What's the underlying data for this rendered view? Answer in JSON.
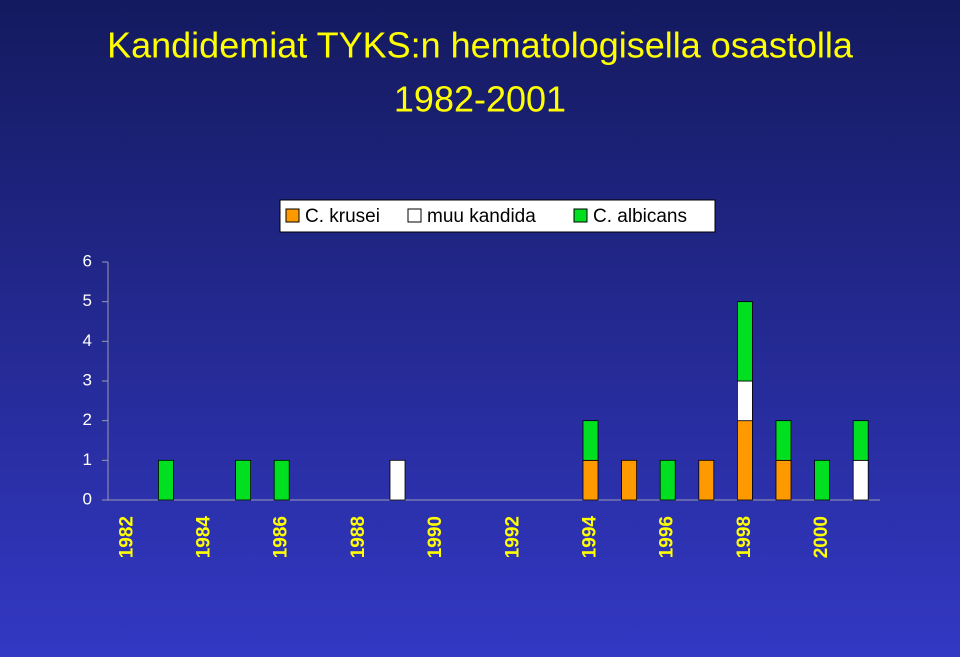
{
  "chart_data": {
    "type": "stacked_bar",
    "title": "Kandidemiat TYKS:n hematologisella osastolla",
    "subtitle": "1982-2001",
    "categories": [
      "1982",
      null,
      "1984",
      null,
      "1986",
      null,
      "1988",
      null,
      "1990",
      null,
      "1992",
      null,
      "1994",
      null,
      "1996",
      null,
      "1998",
      null,
      "2000",
      null
    ],
    "series": [
      {
        "name": "C. krusei",
        "color": "#ff9900",
        "values": [
          0,
          0,
          0,
          0,
          0,
          0,
          0,
          0,
          0,
          0,
          0,
          0,
          1,
          1,
          0,
          1,
          2,
          1,
          0,
          0
        ]
      },
      {
        "name": "muu kandida",
        "color": "#ffffff",
        "values": [
          0,
          0,
          0,
          0,
          0,
          0,
          0,
          1,
          0,
          0,
          0,
          0,
          0,
          0,
          0,
          0,
          1,
          0,
          0,
          1
        ]
      },
      {
        "name": "C. albicans",
        "color": "#00e020",
        "values": [
          0,
          1,
          0,
          1,
          1,
          0,
          0,
          0,
          0,
          0,
          0,
          0,
          1,
          0,
          1,
          0,
          2,
          1,
          1,
          1
        ]
      }
    ],
    "ylim": [
      0,
      6
    ],
    "yticks": [
      0,
      1,
      2,
      3,
      4,
      5,
      6
    ],
    "legend": "top"
  }
}
